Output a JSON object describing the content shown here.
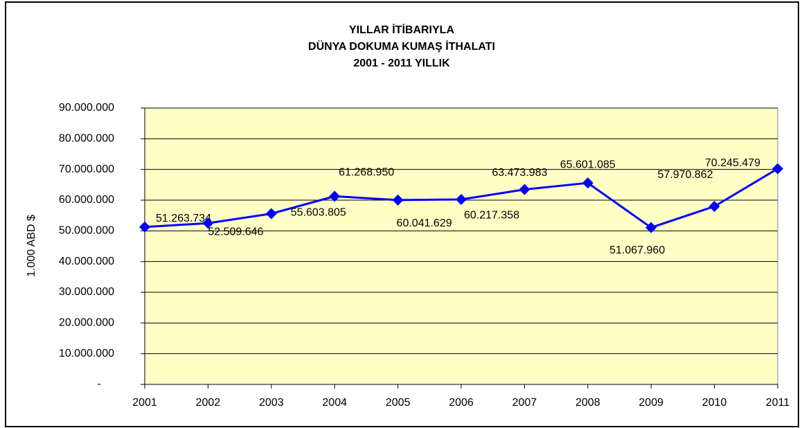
{
  "chart_data": {
    "type": "line",
    "title": [
      "YILLAR İTİBARIYLA",
      "DÜNYA DOKUMA KUMAŞ  İTHALATI",
      "2001 - 2011 YILLIK"
    ],
    "y_label": "1.000 ABD $",
    "categories": [
      "2001",
      "2002",
      "2003",
      "2004",
      "2005",
      "2006",
      "2007",
      "2008",
      "2009",
      "2010",
      "2011"
    ],
    "series": [
      {
        "color": "#0000ff",
        "values": [
          51263734,
          52509646,
          55603805,
          61268950,
          60041629,
          60217358,
          63473983,
          65601085,
          51067960,
          57970862,
          70245479
        ],
        "value_labels": [
          "51.263.734",
          "52.509.646",
          "55.603.805",
          "61.268.950",
          "60.041.629",
          "60.217.358",
          "63.473.983",
          "65.601.085",
          "51.067.960",
          "57.970.862",
          "70.245.479"
        ]
      }
    ],
    "ylim": [
      0,
      90000000
    ],
    "yticks": [
      {
        "value": 0,
        "label": "-"
      },
      {
        "value": 10000000,
        "label": "10.000.000"
      },
      {
        "value": 20000000,
        "label": "20.000.000"
      },
      {
        "value": 30000000,
        "label": "30.000.000"
      },
      {
        "value": 40000000,
        "label": "40.000.000"
      },
      {
        "value": 50000000,
        "label": "50.000.000"
      },
      {
        "value": 60000000,
        "label": "60.000.000"
      },
      {
        "value": 70000000,
        "label": "70.000.000"
      },
      {
        "value": 80000000,
        "label": "80.000.000"
      },
      {
        "value": 90000000,
        "label": "90.000.000"
      }
    ],
    "grid": true,
    "plot_background": "#ffffc6"
  }
}
